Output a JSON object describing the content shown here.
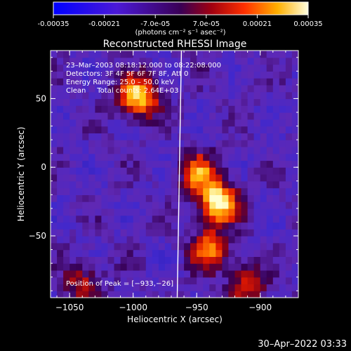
{
  "colorbar": {
    "ticks": [
      "-0.00035",
      "-0.00021",
      "-7.0e-05",
      "7.0e-05",
      "0.00021",
      "0.00035"
    ],
    "unit_label": "(photons cm⁻² s⁻¹ asec⁻²)",
    "range": [
      -0.00035,
      0.00035
    ]
  },
  "chart_data": {
    "type": "heatmap",
    "title": "Reconstructed RHESSI Image",
    "xlabel": "Heliocentric X (arcsec)",
    "ylabel": "Heliocentric Y (arcsec)",
    "xlim": [
      -1065,
      -870
    ],
    "ylim": [
      -95,
      85
    ],
    "x_ticks": [
      -1050,
      -1000,
      -950,
      -900
    ],
    "x_tick_labels": [
      "−1050",
      "−1000",
      "−950",
      "−900"
    ],
    "y_ticks": [
      -50,
      0,
      50
    ],
    "y_tick_labels": [
      "−50",
      "0",
      "50"
    ],
    "info_lines": [
      "23–Mar–2003 08:18:12.000 to 08:22:08.000",
      "Detectors: 3F 4F 5F 6F 7F 8F, Att 0",
      "Energy Range: 25.0 – 50.0 keV",
      "Clean     Total counts: 2.64E+03"
    ],
    "peak_label": "Position of Peak = [−933,−26]",
    "peak_position": [
      -933,
      -26
    ],
    "limb_line_x": -962,
    "sources": [
      {
        "x": -996,
        "y": 52,
        "intensity": 0.95
      },
      {
        "x": -933,
        "y": -26,
        "intensity": 1.0
      },
      {
        "x": -948,
        "y": -5,
        "intensity": 0.7
      },
      {
        "x": -940,
        "y": -60,
        "intensity": 0.65
      },
      {
        "x": -910,
        "y": -85,
        "intensity": 0.5
      },
      {
        "x": -1040,
        "y": -85,
        "intensity": 0.45
      }
    ]
  },
  "timestamp": "30–Apr–2022 03:33"
}
